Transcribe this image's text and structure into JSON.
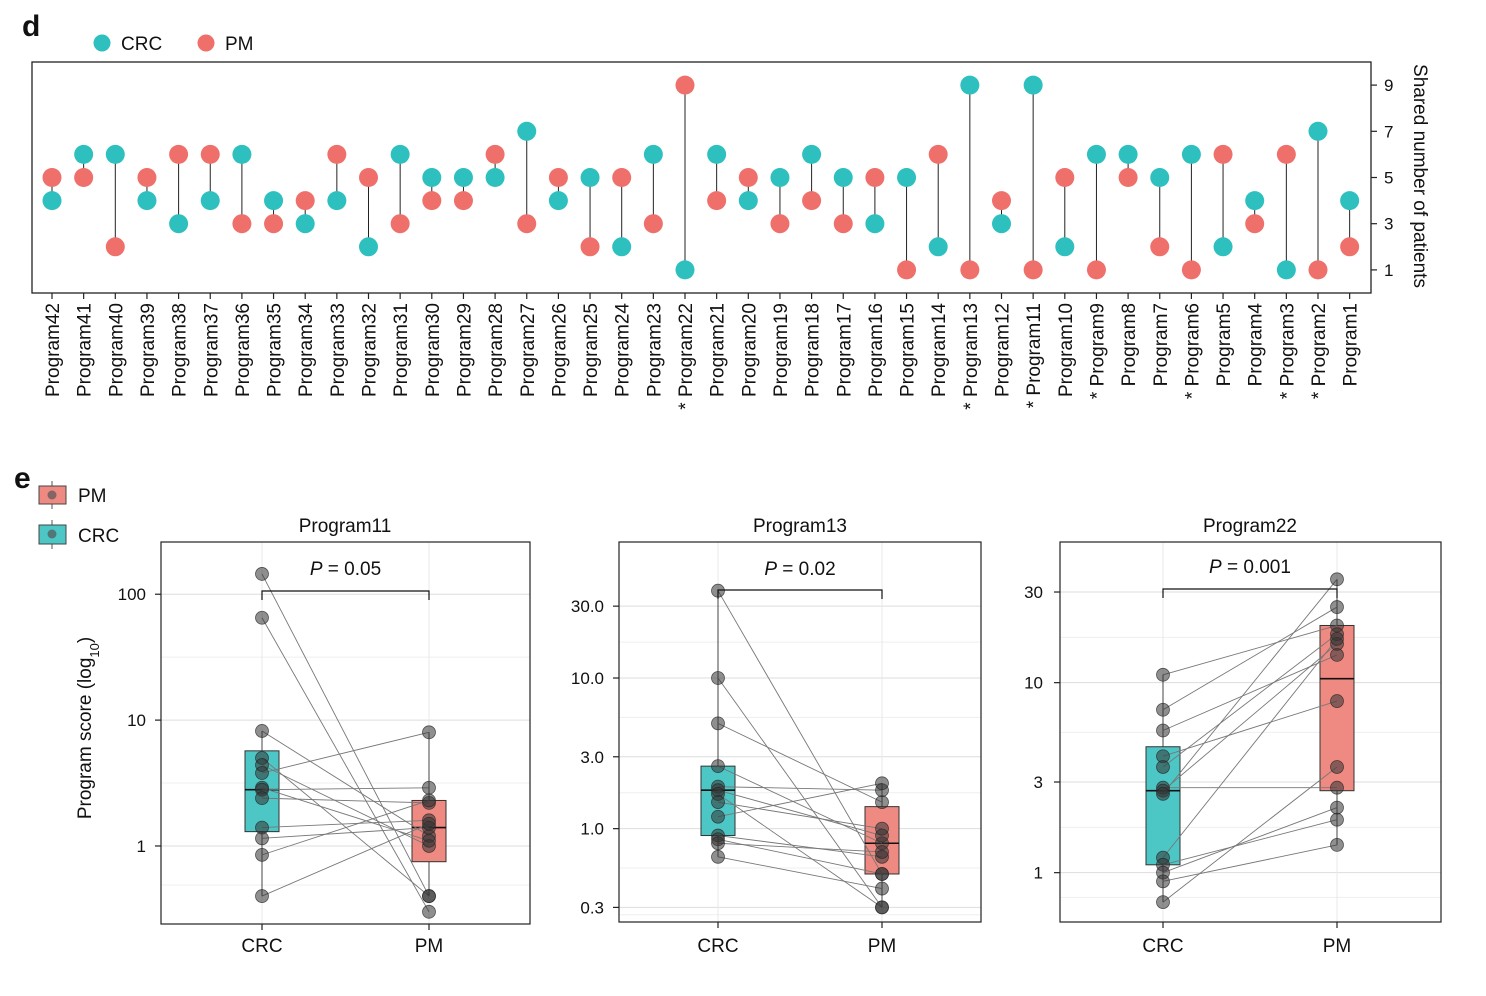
{
  "panel_d": {
    "letter": "d"
  },
  "panel_e": {
    "letter": "e"
  },
  "colors": {
    "crc": "#2ebfbf",
    "pm": "#ef6f6b",
    "crc_box": "#4dc7c5",
    "pm_box": "#ef8a83",
    "grid": "#dddddd"
  },
  "chart_data": [
    {
      "type": "dumbbell",
      "legend": [
        {
          "label": "CRC",
          "color_key": "crc"
        },
        {
          "label": "PM",
          "color_key": "pm"
        }
      ],
      "ylabel": "Shared number of patients",
      "ylim": [
        0,
        10
      ],
      "yticks": [
        1,
        3,
        5,
        7,
        9
      ],
      "programs": [
        {
          "name": "Program42",
          "crc": 4,
          "pm": 5
        },
        {
          "name": "Program41",
          "crc": 6,
          "pm": 5
        },
        {
          "name": "Program40",
          "crc": 6,
          "pm": 2
        },
        {
          "name": "Program39",
          "crc": 4,
          "pm": 5
        },
        {
          "name": "Program38",
          "crc": 3,
          "pm": 6
        },
        {
          "name": "Program37",
          "crc": 4,
          "pm": 6
        },
        {
          "name": "Program36",
          "crc": 6,
          "pm": 3
        },
        {
          "name": "Program35",
          "crc": 4,
          "pm": 3
        },
        {
          "name": "Program34",
          "crc": 3,
          "pm": 4
        },
        {
          "name": "Program33",
          "crc": 4,
          "pm": 6
        },
        {
          "name": "Program32",
          "crc": 2,
          "pm": 5
        },
        {
          "name": "Program31",
          "crc": 6,
          "pm": 3
        },
        {
          "name": "Program30",
          "crc": 5,
          "pm": 4
        },
        {
          "name": "Program29",
          "crc": 5,
          "pm": 4
        },
        {
          "name": "Program28",
          "crc": 5,
          "pm": 6
        },
        {
          "name": "Program27",
          "crc": 7,
          "pm": 3
        },
        {
          "name": "Program26",
          "crc": 4,
          "pm": 5
        },
        {
          "name": "Program25",
          "crc": 5,
          "pm": 2
        },
        {
          "name": "Program24",
          "crc": 2,
          "pm": 5
        },
        {
          "name": "Program23",
          "crc": 6,
          "pm": 3
        },
        {
          "name": "Program22",
          "crc": 1,
          "pm": 9,
          "star": true,
          "highlight": "pm"
        },
        {
          "name": "Program21",
          "crc": 6,
          "pm": 4
        },
        {
          "name": "Program20",
          "crc": 4,
          "pm": 5
        },
        {
          "name": "Program19",
          "crc": 5,
          "pm": 3
        },
        {
          "name": "Program18",
          "crc": 6,
          "pm": 4
        },
        {
          "name": "Program17",
          "crc": 5,
          "pm": 3
        },
        {
          "name": "Program16",
          "crc": 3,
          "pm": 5
        },
        {
          "name": "Program15",
          "crc": 5,
          "pm": 1
        },
        {
          "name": "Program14",
          "crc": 2,
          "pm": 6
        },
        {
          "name": "Program13",
          "crc": 9,
          "pm": 1,
          "star": true,
          "highlight": "crc"
        },
        {
          "name": "Program12",
          "crc": 3,
          "pm": 4
        },
        {
          "name": "Program11",
          "crc": 9,
          "pm": 1,
          "star": true,
          "highlight": "crc"
        },
        {
          "name": "Program10",
          "crc": 2,
          "pm": 5
        },
        {
          "name": "Program9",
          "crc": 6,
          "pm": 1,
          "star": true
        },
        {
          "name": "Program8",
          "crc": 6,
          "pm": 5
        },
        {
          "name": "Program7",
          "crc": 5,
          "pm": 2
        },
        {
          "name": "Program6",
          "crc": 6,
          "pm": 1,
          "star": true
        },
        {
          "name": "Program5",
          "crc": 2,
          "pm": 6
        },
        {
          "name": "Program4",
          "crc": 4,
          "pm": 3
        },
        {
          "name": "Program3",
          "crc": 1,
          "pm": 6,
          "star": true
        },
        {
          "name": "Program2",
          "crc": 7,
          "pm": 1,
          "star": true
        },
        {
          "name": "Program1",
          "crc": 4,
          "pm": 2
        }
      ]
    },
    {
      "type": "paired-box",
      "legend": [
        {
          "label": "PM",
          "color_key": "pm_box"
        },
        {
          "label": "CRC",
          "color_key": "crc_box"
        }
      ],
      "ylabel_main": "Program score (log",
      "ylabel_sub": "10",
      "ylabel_end": ")",
      "categories": [
        "CRC",
        "PM"
      ],
      "panels": [
        {
          "title": "Program11",
          "p_prefix": "P",
          "p_text": " = 0.05",
          "ylim": [
            0.24,
            260
          ],
          "yticks": [
            1,
            10,
            100
          ],
          "ytick_labels": [
            "1",
            "10",
            "100"
          ],
          "crc_box": {
            "q1": 1.3,
            "median": 2.8,
            "q3": 5.7,
            "low": 0.4,
            "high": 8.2
          },
          "pm_box": {
            "q1": 0.75,
            "median": 1.4,
            "q3": 2.3,
            "low": 0.4,
            "high": 8.0
          },
          "pairs": [
            [
              145,
              0.4
            ],
            [
              65,
              0.3
            ],
            [
              8.2,
              1.2
            ],
            [
              5.0,
              0.4
            ],
            [
              4.4,
              1.0
            ],
            [
              3.8,
              8.0
            ],
            [
              2.9,
              1.1
            ],
            [
              2.8,
              2.9
            ],
            [
              2.4,
              2.2
            ],
            [
              1.4,
              1.6
            ],
            [
              1.15,
              1.4
            ],
            [
              0.85,
              2.3
            ],
            [
              0.4,
              1.5
            ]
          ]
        },
        {
          "title": "Program13",
          "p_prefix": "P",
          "p_text": " = 0.02",
          "ylim": [
            0.24,
            80
          ],
          "yticks": [
            0.3,
            1.0,
            3.0,
            10.0,
            30.0
          ],
          "ytick_labels": [
            "0.3",
            "1.0",
            "3.0",
            "10.0",
            "30.0"
          ],
          "crc_box": {
            "q1": 0.9,
            "median": 1.8,
            "q3": 2.6,
            "low": 0.65,
            "high": 38
          },
          "pm_box": {
            "q1": 0.5,
            "median": 0.8,
            "q3": 1.4,
            "low": 0.3,
            "high": 2.0
          },
          "pairs": [
            [
              38,
              0.5
            ],
            [
              10,
              0.3
            ],
            [
              5.0,
              1.5
            ],
            [
              2.6,
              0.8
            ],
            [
              1.9,
              1.8
            ],
            [
              1.8,
              0.9
            ],
            [
              1.7,
              0.3
            ],
            [
              1.5,
              1.0
            ],
            [
              1.2,
              2.0
            ],
            [
              0.9,
              0.65
            ],
            [
              0.85,
              0.5
            ],
            [
              0.8,
              0.7
            ],
            [
              0.65,
              0.4
            ]
          ]
        },
        {
          "title": "Program22",
          "p_prefix": "P",
          "p_text": " = 0.001",
          "ylim": [
            0.55,
            55
          ],
          "yticks": [
            1,
            3,
            10,
            30
          ],
          "ytick_labels": [
            "1",
            "3",
            "10",
            "30"
          ],
          "crc_box": {
            "q1": 1.1,
            "median": 2.7,
            "q3": 4.6,
            "low": 0.7,
            "high": 11
          },
          "pm_box": {
            "q1": 2.7,
            "median": 10.5,
            "q3": 20,
            "low": 1.4,
            "high": 35
          },
          "pairs": [
            [
              11,
              20
            ],
            [
              7.2,
              25
            ],
            [
              5.6,
              14
            ],
            [
              4.1,
              8
            ],
            [
              3.6,
              18
            ],
            [
              2.8,
              2.8
            ],
            [
              2.7,
              16
            ],
            [
              2.6,
              35
            ],
            [
              1.2,
              17
            ],
            [
              1.1,
              1.9
            ],
            [
              1.0,
              2.2
            ],
            [
              0.9,
              1.4
            ],
            [
              0.7,
              3.6
            ]
          ]
        }
      ]
    }
  ]
}
